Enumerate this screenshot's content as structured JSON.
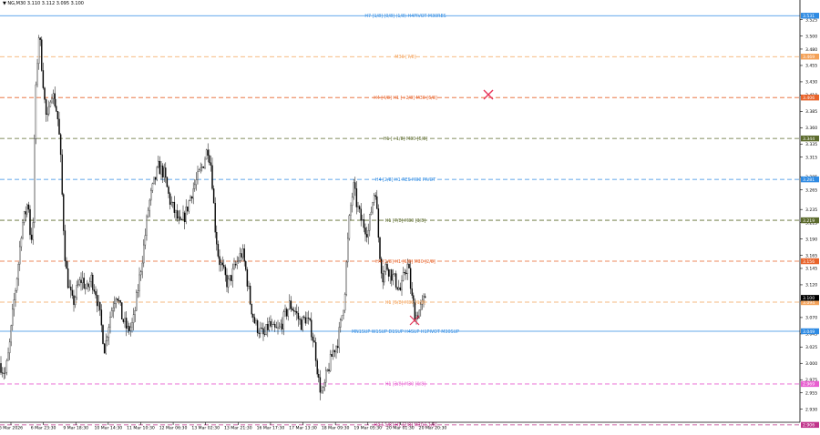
{
  "header": {
    "text": "▼ NG,M30  3.110 3.112 3.095 3.100"
  },
  "colors": {
    "background": "#ffffff",
    "axis": "#000000",
    "grid": "#dcdcdc",
    "candle_up": "#ffffff",
    "candle_down": "#000000",
    "price_tag": "#000000",
    "cross": "#e8365a"
  },
  "chart_data": {
    "type": "candlestick",
    "title": "",
    "ylim": [
      2.91,
      3.555
    ],
    "y_ticks": [
      "3.525",
      "3.500",
      "3.480",
      "3.455",
      "3.430",
      "3.410",
      "3.385",
      "3.360",
      "3.335",
      "3.315",
      "3.285",
      "3.265",
      "3.235",
      "3.215",
      "3.190",
      "3.165",
      "3.145",
      "3.120",
      "3.095",
      "3.070",
      "3.045",
      "3.025",
      "3.000",
      "2.975",
      "2.955",
      "2.930"
    ],
    "x_labels": [
      "6 Mar 2026",
      "6 Mar 23:30",
      "9 Mar 18:30",
      "10 Mar 14:30",
      "11 Mar 10:30",
      "12 Mar 06:30",
      "13 Mar 02:30",
      "13 Mar 21:30",
      "16 Mar 17:30",
      "17 Mar 13:30",
      "18 Mar 09:30",
      "19 Mar 05:30",
      "20 Mar 01:30",
      "20 Mar 20:30"
    ],
    "current_price": 3.1,
    "price_path": [
      [
        0,
        3.0
      ],
      [
        3,
        2.99
      ],
      [
        6,
        2.985
      ],
      [
        10,
        3.02
      ],
      [
        15,
        3.09
      ],
      [
        20,
        3.15
      ],
      [
        24,
        3.21
      ],
      [
        28,
        3.23
      ],
      [
        31,
        3.25
      ],
      [
        33,
        3.2
      ],
      [
        36,
        3.19
      ],
      [
        38,
        3.36
      ],
      [
        40,
        3.44
      ],
      [
        43,
        3.51
      ],
      [
        45,
        3.47
      ],
      [
        48,
        3.42
      ],
      [
        50,
        3.38
      ],
      [
        53,
        3.37
      ],
      [
        56,
        3.42
      ],
      [
        60,
        3.4
      ],
      [
        63,
        3.38
      ],
      [
        66,
        3.33
      ],
      [
        69,
        3.23
      ],
      [
        72,
        3.15
      ],
      [
        75,
        3.12
      ],
      [
        80,
        3.09
      ],
      [
        85,
        3.115
      ],
      [
        90,
        3.13
      ],
      [
        95,
        3.11
      ],
      [
        100,
        3.13
      ],
      [
        105,
        3.11
      ],
      [
        110,
        3.07
      ],
      [
        115,
        3.02
      ],
      [
        118,
        3.05
      ],
      [
        122,
        3.08
      ],
      [
        128,
        3.11
      ],
      [
        134,
        3.07
      ],
      [
        140,
        3.05
      ],
      [
        146,
        3.06
      ],
      [
        152,
        3.12
      ],
      [
        158,
        3.18
      ],
      [
        163,
        3.24
      ],
      [
        168,
        3.27
      ],
      [
        174,
        3.3
      ],
      [
        180,
        3.29
      ],
      [
        186,
        3.25
      ],
      [
        192,
        3.23
      ],
      [
        198,
        3.21
      ],
      [
        204,
        3.23
      ],
      [
        210,
        3.26
      ],
      [
        216,
        3.28
      ],
      [
        222,
        3.3
      ],
      [
        228,
        3.33
      ],
      [
        232,
        3.3
      ],
      [
        236,
        3.21
      ],
      [
        240,
        3.16
      ],
      [
        245,
        3.14
      ],
      [
        250,
        3.12
      ],
      [
        256,
        3.14
      ],
      [
        262,
        3.16
      ],
      [
        266,
        3.17
      ],
      [
        270,
        3.14
      ],
      [
        275,
        3.09
      ],
      [
        280,
        3.06
      ],
      [
        285,
        3.05
      ],
      [
        290,
        3.04
      ],
      [
        295,
        3.06
      ],
      [
        300,
        3.05
      ],
      [
        306,
        3.05
      ],
      [
        312,
        3.07
      ],
      [
        318,
        3.09
      ],
      [
        324,
        3.08
      ],
      [
        330,
        3.06
      ],
      [
        336,
        3.07
      ],
      [
        342,
        3.05
      ],
      [
        346,
        3.02
      ],
      [
        350,
        2.97
      ],
      [
        354,
        2.95
      ],
      [
        358,
        2.98
      ],
      [
        362,
        3.0
      ],
      [
        366,
        3.02
      ],
      [
        370,
        3.03
      ],
      [
        374,
        3.06
      ],
      [
        378,
        3.1
      ],
      [
        381,
        3.17
      ],
      [
        384,
        3.23
      ],
      [
        388,
        3.27
      ],
      [
        392,
        3.24
      ],
      [
        396,
        3.22
      ],
      [
        400,
        3.21
      ],
      [
        404,
        3.2
      ],
      [
        408,
        3.24
      ],
      [
        412,
        3.27
      ],
      [
        416,
        3.18
      ],
      [
        420,
        3.13
      ],
      [
        424,
        3.15
      ],
      [
        428,
        3.14
      ],
      [
        432,
        3.13
      ],
      [
        436,
        3.12
      ],
      [
        440,
        3.11
      ],
      [
        444,
        3.14
      ],
      [
        448,
        3.15
      ],
      [
        452,
        3.1
      ],
      [
        456,
        3.07
      ],
      [
        460,
        3.08
      ],
      [
        464,
        3.09
      ],
      [
        468,
        3.11
      ]
    ],
    "levels": [
      {
        "price": 3.531,
        "label": "H7 [1/8] [0/8] (1/8) H4PIVOT M30RES",
        "color": "#2f8be3",
        "dash": "solid",
        "tag": "3.531"
      },
      {
        "price": 3.4685,
        "label": "M30 [7/8]",
        "color": "#f4a259",
        "dash": "dashed",
        "tag": "3.469"
      },
      {
        "price": 3.406,
        "label": "H4 [4/8] H1 [+2/8] M30 [6/8]",
        "color": "#e8632a",
        "dash": "dashed",
        "tag": "3.406"
      },
      {
        "price": 3.3435,
        "label": "H1 [+1/8] M30 [5/8]",
        "color": "#5c6b2d",
        "dash": "dashed",
        "tag": "3.344"
      },
      {
        "price": 3.281,
        "label": "H4 [2/8] H1 RES M30 PIVOT",
        "color": "#2f8be3",
        "dash": "dashed",
        "tag": "3.281"
      },
      {
        "price": 3.2185,
        "label": "H1 [7/8] M30 [3/8]",
        "color": "#5c6b2d",
        "dash": "dashed",
        "tag": "3.219"
      },
      {
        "price": 3.156,
        "label": "H4 [1/8] H1 [6/8] M30 [2/8]",
        "color": "#e8632a",
        "dash": "dashed",
        "tag": "3.156"
      },
      {
        "price": 3.0935,
        "label": "H1 [5/8] M30 [1/8]",
        "color": "#f4a259",
        "dash": "dashed",
        "tag": "3.094"
      },
      {
        "price": 3.049,
        "label": "MN1SUP W1SUP D1SUP H4SUP H1PIVOT M30SUP",
        "color": "#2f8be3",
        "dash": "solid",
        "tag": "3.049"
      },
      {
        "price": 2.9685,
        "label": "H1 [3/8] M30 [0/8]",
        "color": "#e85fd0",
        "dash": "dashed",
        "tag": "2.969"
      },
      {
        "price": 2.906,
        "label": "H4 [-1/8] H1 [2/8] M30 [-1/8]",
        "color": "#c0348b",
        "dash": "dashed",
        "tag": "2.906"
      }
    ]
  }
}
